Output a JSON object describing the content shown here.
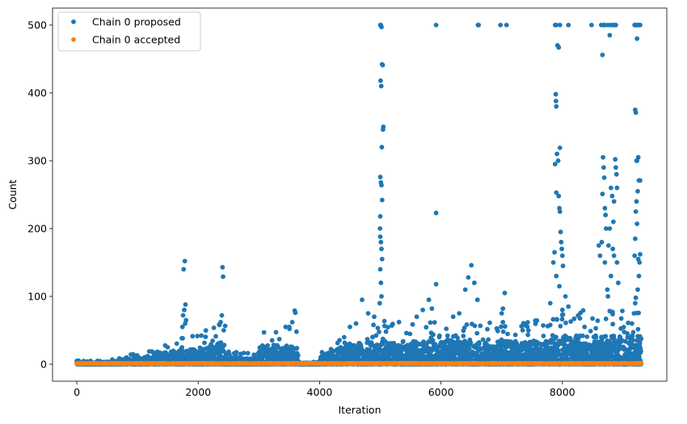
{
  "chart_data": {
    "type": "scatter",
    "xlabel": "Iteration",
    "ylabel": "Count",
    "xlim": [
      -400,
      9720
    ],
    "ylim": [
      -25,
      525
    ],
    "xticks": [
      0,
      2000,
      4000,
      6000,
      8000
    ],
    "yticks": [
      0,
      100,
      200,
      300,
      400,
      500
    ],
    "legend_position": "top-left",
    "series": [
      {
        "name": "Chain 0 proposed",
        "color": "#1f77b4",
        "n_points": 9300,
        "points": [
          [
            1780,
            152
          ],
          [
            1760,
            140
          ],
          [
            1790,
            88
          ],
          [
            1770,
            80
          ],
          [
            1750,
            72
          ],
          [
            1800,
            65
          ],
          [
            1785,
            60
          ],
          [
            1740,
            55
          ],
          [
            2400,
            143
          ],
          [
            2410,
            129
          ],
          [
            2390,
            72
          ],
          [
            2370,
            62
          ],
          [
            2350,
            58
          ],
          [
            2420,
            50
          ],
          [
            3590,
            79
          ],
          [
            3600,
            76
          ],
          [
            3550,
            62
          ],
          [
            3500,
            55
          ],
          [
            3440,
            55
          ],
          [
            3620,
            48
          ],
          [
            5000,
            500
          ],
          [
            5010,
            500
          ],
          [
            5020,
            497
          ],
          [
            5030,
            442
          ],
          [
            5040,
            441
          ],
          [
            5005,
            418
          ],
          [
            5015,
            410
          ],
          [
            5050,
            350
          ],
          [
            5045,
            346
          ],
          [
            5025,
            320
          ],
          [
            5000,
            276
          ],
          [
            5010,
            268
          ],
          [
            5020,
            264
          ],
          [
            5030,
            242
          ],
          [
            5000,
            218
          ],
          [
            4995,
            200
          ],
          [
            5000,
            188
          ],
          [
            5010,
            180
          ],
          [
            5020,
            170
          ],
          [
            5030,
            155
          ],
          [
            5000,
            140
          ],
          [
            5010,
            120
          ],
          [
            5020,
            100
          ],
          [
            4990,
            90
          ],
          [
            4700,
            95
          ],
          [
            4800,
            75
          ],
          [
            4900,
            70
          ],
          [
            4600,
            60
          ],
          [
            4500,
            55
          ],
          [
            5920,
            500
          ],
          [
            5920,
            223
          ],
          [
            5920,
            118
          ],
          [
            5800,
            95
          ],
          [
            5700,
            80
          ],
          [
            5600,
            70
          ],
          [
            5850,
            82
          ],
          [
            6300,
            75
          ],
          [
            6400,
            110
          ],
          [
            6450,
            128
          ],
          [
            6500,
            146
          ],
          [
            6550,
            120
          ],
          [
            6600,
            95
          ],
          [
            6620,
            500
          ],
          [
            6610,
            500
          ],
          [
            6200,
            70
          ],
          [
            6980,
            500
          ],
          [
            7080,
            500
          ],
          [
            7020,
            82
          ],
          [
            7050,
            105
          ],
          [
            7000,
            75
          ],
          [
            7880,
            500
          ],
          [
            7900,
            500
          ],
          [
            7920,
            470
          ],
          [
            7940,
            467
          ],
          [
            7960,
            500
          ],
          [
            7890,
            398
          ],
          [
            7895,
            388
          ],
          [
            7900,
            380
          ],
          [
            7960,
            319
          ],
          [
            7910,
            310
          ],
          [
            7880,
            295
          ],
          [
            7930,
            300
          ],
          [
            7900,
            253
          ],
          [
            7940,
            248
          ],
          [
            7950,
            230
          ],
          [
            7960,
            225
          ],
          [
            7970,
            195
          ],
          [
            7980,
            180
          ],
          [
            7990,
            170
          ],
          [
            8000,
            160
          ],
          [
            7850,
            150
          ],
          [
            7870,
            165
          ],
          [
            8010,
            145
          ],
          [
            7900,
            130
          ],
          [
            7950,
            115
          ],
          [
            8050,
            100
          ],
          [
            7800,
            90
          ],
          [
            8100,
            85
          ],
          [
            8000,
            80
          ],
          [
            8100,
            500
          ],
          [
            8480,
            500
          ],
          [
            8640,
            500
          ],
          [
            8660,
            456
          ],
          [
            8680,
            500
          ],
          [
            8700,
            500
          ],
          [
            8750,
            500
          ],
          [
            8780,
            485
          ],
          [
            8800,
            500
          ],
          [
            8830,
            500
          ],
          [
            8860,
            500
          ],
          [
            8880,
            500
          ],
          [
            8670,
            305
          ],
          [
            8680,
            290
          ],
          [
            8690,
            275
          ],
          [
            8660,
            251
          ],
          [
            8700,
            230
          ],
          [
            8710,
            220
          ],
          [
            8720,
            200
          ],
          [
            8600,
            175
          ],
          [
            8650,
            180
          ],
          [
            8620,
            160
          ],
          [
            8700,
            150
          ],
          [
            8740,
            110
          ],
          [
            8800,
            130
          ],
          [
            8750,
            100
          ],
          [
            8800,
            260
          ],
          [
            8820,
            248
          ],
          [
            8850,
            240
          ],
          [
            8870,
            302
          ],
          [
            8880,
            290
          ],
          [
            8890,
            280
          ],
          [
            8900,
            260
          ],
          [
            8840,
            210
          ],
          [
            8780,
            200
          ],
          [
            8760,
            175
          ],
          [
            8830,
            170
          ],
          [
            8850,
            160
          ],
          [
            8900,
            150
          ],
          [
            8920,
            120
          ],
          [
            9190,
            500
          ],
          [
            9200,
            500
          ],
          [
            9220,
            500
          ],
          [
            9240,
            500
          ],
          [
            9260,
            500
          ],
          [
            9280,
            500
          ],
          [
            9230,
            480
          ],
          [
            9200,
            375
          ],
          [
            9210,
            371
          ],
          [
            9220,
            300
          ],
          [
            9230,
            300
          ],
          [
            9250,
            305
          ],
          [
            9260,
            271
          ],
          [
            9280,
            271
          ],
          [
            9240,
            255
          ],
          [
            9220,
            240
          ],
          [
            9210,
            225
          ],
          [
            9230,
            207
          ],
          [
            9200,
            185
          ],
          [
            9190,
            160
          ],
          [
            9250,
            155
          ],
          [
            9280,
            162
          ],
          [
            9270,
            150
          ],
          [
            9260,
            130
          ],
          [
            9240,
            110
          ],
          [
            9210,
            98
          ],
          [
            9200,
            90
          ],
          [
            9180,
            75
          ]
        ]
      },
      {
        "name": "Chain 0 accepted",
        "color": "#ff7f0e",
        "n_points": 9300,
        "points": []
      }
    ]
  }
}
